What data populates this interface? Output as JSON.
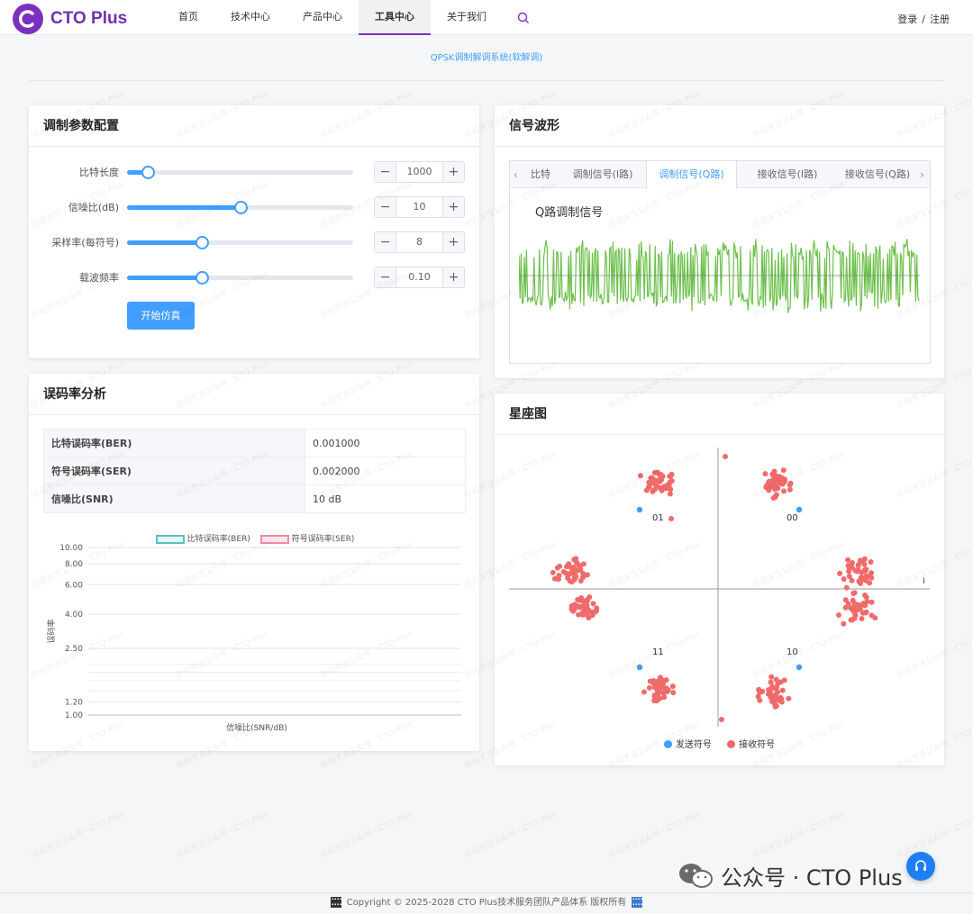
{
  "header": {
    "brand": "CTO Plus",
    "nav": [
      {
        "label": "首页",
        "active": false
      },
      {
        "label": "技术中心",
        "active": false
      },
      {
        "label": "产品中心",
        "active": false
      },
      {
        "label": "工具中心",
        "active": true
      },
      {
        "label": "关于我们",
        "active": false
      }
    ],
    "login": "登录",
    "separator": "/",
    "register": "注册"
  },
  "page_title": "QPSK调制解调系统(软解调)",
  "params": {
    "title": "调制参数配置",
    "items": [
      {
        "label": "比特长度",
        "value": "1000",
        "fraction": 0.09
      },
      {
        "label": "信噪比(dB)",
        "value": "10",
        "fraction": 0.5
      },
      {
        "label": "采样率(每符号)",
        "value": "8",
        "fraction": 0.33
      },
      {
        "label": "载波频率",
        "value": "0.10",
        "fraction": 0.33
      }
    ],
    "minus": "−",
    "plus": "+",
    "start_button": "开始仿真"
  },
  "ber": {
    "title": "误码率分析",
    "rows": [
      {
        "key": "比特误码率(BER)",
        "value": "0.001000"
      },
      {
        "key": "符号误码率(SER)",
        "value": "0.002000"
      },
      {
        "key": "信噪比(SNR)",
        "value": "10 dB"
      }
    ]
  },
  "waveform": {
    "title": "信号波形",
    "tabs": [
      {
        "label": "比特",
        "active": false
      },
      {
        "label": "调制信号(I路)",
        "active": false
      },
      {
        "label": "调制信号(Q路)",
        "active": true
      },
      {
        "label": "接收信号(I路)",
        "active": false
      },
      {
        "label": "接收信号(Q路)",
        "active": false
      }
    ],
    "prev_arrow": "‹",
    "next_arrow": "›",
    "plot_title": "Q路调制信号",
    "line_color": "#6cc04a"
  },
  "constellation": {
    "title": "星座图",
    "quadrant_labels": [
      "00",
      "01",
      "11",
      "10"
    ],
    "axis_label_i": "I",
    "legend": [
      {
        "label": "发送符号",
        "color": "#409eff"
      },
      {
        "label": "接收符号",
        "color": "#f06a6a"
      }
    ]
  },
  "chart_data": {
    "type": "line",
    "title": "",
    "xlabel": "信噪比(SNR/dB)",
    "ylabel": "误码率",
    "y_ticks": [
      "10.00",
      "8.00",
      "6.00",
      "4.00",
      "2.50",
      "1.20",
      "1.00"
    ],
    "ylim": [
      1.0,
      10.0
    ],
    "yscale": "log",
    "series": [
      {
        "name": "比特误码率(BER)",
        "color": "#5bc0c0",
        "values": []
      },
      {
        "name": "符号误码率(SER)",
        "color": "#f08aa0",
        "values": []
      }
    ],
    "legend_position": "top-center",
    "grid": true
  },
  "footer": {
    "copyright": "Copyright © 2025-2028 CTO Plus技术服务团队产品体系 版权所有"
  },
  "wechat": {
    "text": "公众号 · CTO Plus"
  },
  "watermark": "欢迎关注公众号 · CTO Plus"
}
